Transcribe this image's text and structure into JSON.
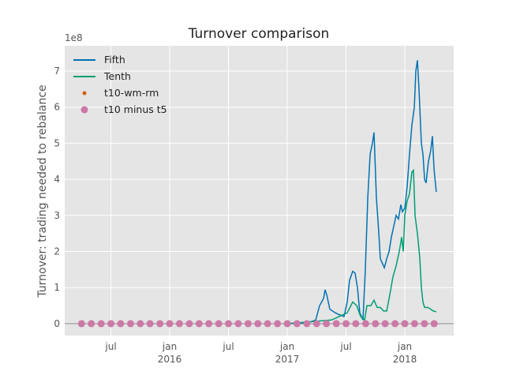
{
  "chart_data": {
    "type": "line",
    "title": "Turnover comparison",
    "y_label": "Turnover: trading needed to rebalance",
    "y_offset_label": "1e8",
    "xlim": [
      2015.107,
      2018.416
    ],
    "xticks": [
      {
        "value": 2015.5,
        "label": "jul"
      },
      {
        "value": 2016,
        "label": "jan\n2016"
      },
      {
        "value": 2016.5,
        "label": "jul"
      },
      {
        "value": 2017,
        "label": "jan\n2017"
      },
      {
        "value": 2017.5,
        "label": "jul"
      },
      {
        "value": 2018,
        "label": "jan\n2018"
      }
    ],
    "ylim": [
      -0.33,
      7.7
    ],
    "yticks": [
      0,
      1,
      2,
      3,
      4,
      5,
      6,
      7
    ],
    "grid": true,
    "legend": "upper left",
    "series": [
      {
        "name": "Fifth",
        "color": "#0072b2",
        "style": "line",
        "x": [
          2017.0,
          2017.174,
          2017.242,
          2017.275,
          2017.309,
          2017.322,
          2017.336,
          2017.362,
          2017.409,
          2017.443,
          2017.483,
          2017.51,
          2017.53,
          2017.557,
          2017.577,
          2017.597,
          2017.617,
          2017.644,
          2017.664,
          2017.685,
          2017.705,
          2017.725,
          2017.738,
          2017.758,
          2017.779,
          2017.792,
          2017.805,
          2017.826,
          2017.846,
          2017.866,
          2017.886,
          2017.906,
          2017.926,
          2017.946,
          2017.966,
          2017.98,
          2018.0,
          2018.02,
          2018.04,
          2018.06,
          2018.081,
          2018.094,
          2018.107,
          2018.121,
          2018.141,
          2018.154,
          2018.168,
          2018.181,
          2018.201,
          2018.221,
          2018.235,
          2018.248,
          2018.268
        ],
        "values": [
          0.0,
          0.02,
          0.1,
          0.5,
          0.7,
          0.94,
          0.8,
          0.4,
          0.3,
          0.25,
          0.2,
          0.6,
          1.2,
          1.45,
          1.4,
          1.0,
          0.3,
          0.1,
          1.5,
          3.5,
          4.7,
          5.0,
          5.3,
          3.5,
          2.5,
          1.8,
          1.7,
          1.55,
          1.8,
          2.0,
          2.4,
          2.7,
          3.0,
          2.9,
          3.3,
          3.1,
          3.2,
          3.8,
          4.7,
          5.5,
          6.0,
          7.0,
          7.3,
          6.5,
          5.0,
          4.7,
          4.0,
          3.9,
          4.5,
          4.8,
          5.2,
          4.3,
          3.65
        ]
      },
      {
        "name": "Tenth",
        "color": "#009e73",
        "style": "line",
        "x": [
          2017.0,
          2017.376,
          2017.51,
          2017.557,
          2017.591,
          2017.624,
          2017.658,
          2017.678,
          2017.711,
          2017.738,
          2017.765,
          2017.792,
          2017.819,
          2017.846,
          2017.872,
          2017.899,
          2017.926,
          2017.953,
          2017.973,
          2017.987,
          2018.0,
          2018.02,
          2018.04,
          2018.06,
          2018.074,
          2018.087,
          2018.107,
          2018.128,
          2018.141,
          2018.154,
          2018.168,
          2018.195,
          2018.221,
          2018.242,
          2018.268
        ],
        "values": [
          0.0,
          0.1,
          0.3,
          0.6,
          0.5,
          0.2,
          0.1,
          0.5,
          0.5,
          0.65,
          0.45,
          0.45,
          0.35,
          0.35,
          0.8,
          1.3,
          1.6,
          2.0,
          2.4,
          2.0,
          3.0,
          3.4,
          3.6,
          4.2,
          4.25,
          3.0,
          2.5,
          1.8,
          1.0,
          0.6,
          0.45,
          0.45,
          0.4,
          0.35,
          0.33
        ]
      },
      {
        "name": "t10-wm-rm",
        "color": "#d55e00",
        "style": "dot",
        "x": [
          2015.25,
          2015.333,
          2015.417,
          2015.5,
          2015.583,
          2015.667,
          2015.75,
          2015.833,
          2015.917,
          2016.0,
          2016.083,
          2016.167,
          2016.25,
          2016.333,
          2016.417,
          2016.5,
          2016.583,
          2016.667,
          2016.75,
          2016.833,
          2016.917,
          2017.0,
          2017.083,
          2017.167,
          2017.25,
          2017.333,
          2017.417,
          2017.5,
          2017.583,
          2017.667,
          2017.75,
          2017.833,
          2017.917,
          2018.0,
          2018.083,
          2018.167,
          2018.25
        ],
        "values": [
          0,
          0,
          0,
          0,
          0,
          0,
          0,
          0,
          0,
          0,
          0,
          0,
          0,
          0,
          0,
          0,
          0,
          0,
          0,
          0,
          0,
          0,
          0,
          0,
          0,
          0,
          0,
          0,
          0,
          0,
          0,
          0,
          0,
          0,
          0,
          0,
          0
        ]
      },
      {
        "name": "t10 minus t5",
        "color": "#cc79a7",
        "style": "bigdot",
        "x": [
          2015.25,
          2015.333,
          2015.417,
          2015.5,
          2015.583,
          2015.667,
          2015.75,
          2015.833,
          2015.917,
          2016.0,
          2016.083,
          2016.167,
          2016.25,
          2016.333,
          2016.417,
          2016.5,
          2016.583,
          2016.667,
          2016.75,
          2016.833,
          2016.917,
          2017.0,
          2017.083,
          2017.167,
          2017.25,
          2017.333,
          2017.417,
          2017.5,
          2017.583,
          2017.667,
          2017.75,
          2017.833,
          2017.917,
          2018.0,
          2018.083,
          2018.167,
          2018.25
        ],
        "values": [
          0,
          0,
          0,
          0,
          0,
          0,
          0,
          0,
          0,
          0,
          0,
          0,
          0,
          0,
          0,
          0,
          0,
          0,
          0,
          0,
          0,
          0,
          0,
          0,
          0,
          0,
          0,
          0,
          0,
          0,
          0,
          0,
          0,
          0,
          0,
          0,
          0
        ]
      }
    ]
  }
}
